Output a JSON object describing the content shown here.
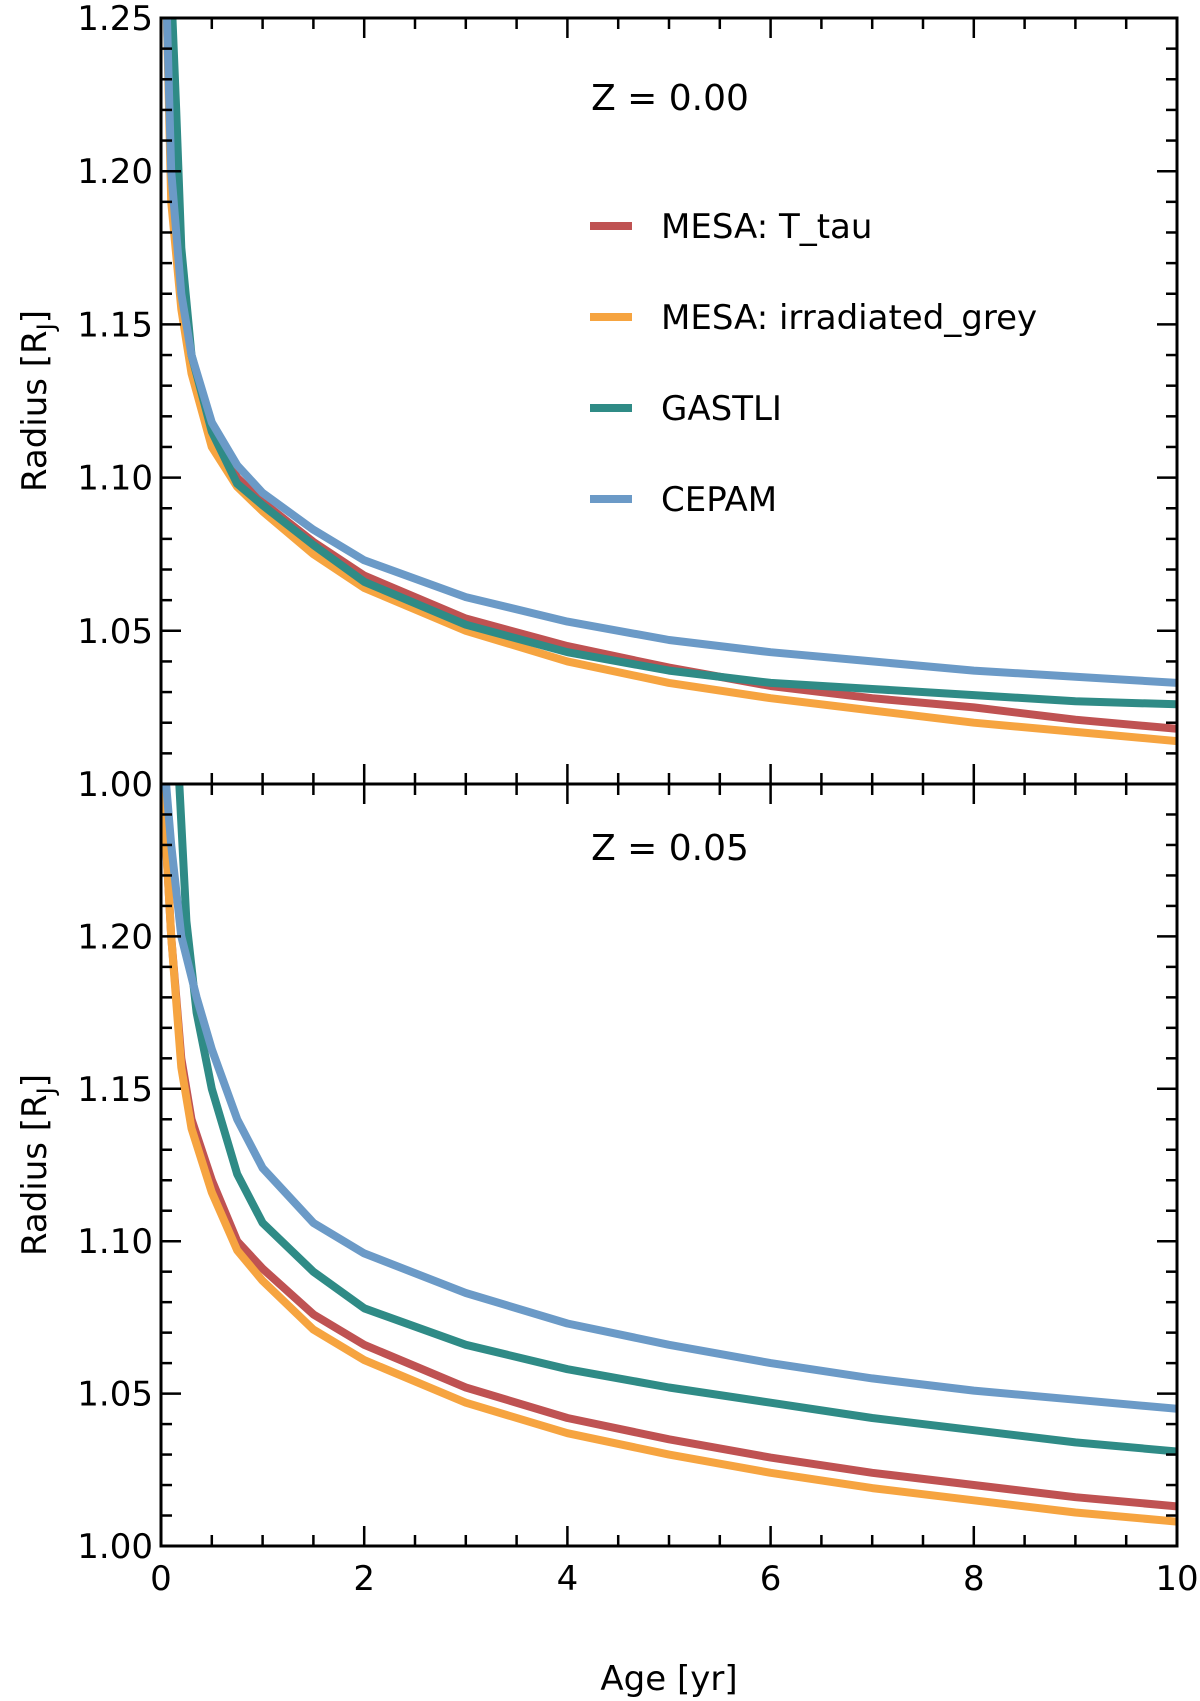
{
  "chart_data": [
    {
      "type": "line",
      "panel_label": "Z = 0.00",
      "xlabel": "Age [yr]",
      "ylabel_main": "Radius [R",
      "ylabel_sub": "J",
      "ylabel_close": "]",
      "xlim": [
        0,
        10
      ],
      "ylim": [
        1.0,
        1.25
      ],
      "xticks": [
        0,
        2,
        4,
        6,
        8,
        10
      ],
      "yticks": [
        1.0,
        1.05,
        1.1,
        1.15,
        1.2,
        1.25
      ],
      "ytick_labels": [
        "1.00",
        "1.05",
        "1.10",
        "1.15",
        "1.20",
        "1.25"
      ],
      "legend_position": "upper-right",
      "series": [
        {
          "name": "MESA: T_tau",
          "color": "#bf5252",
          "points": [
            [
              0.05,
              1.26
            ],
            [
              0.1,
              1.2
            ],
            [
              0.2,
              1.16
            ],
            [
              0.3,
              1.137
            ],
            [
              0.5,
              1.114
            ],
            [
              0.75,
              1.1
            ],
            [
              1.0,
              1.092
            ],
            [
              1.5,
              1.079
            ],
            [
              2.0,
              1.068
            ],
            [
              3.0,
              1.054
            ],
            [
              4.0,
              1.045
            ],
            [
              5.0,
              1.038
            ],
            [
              6.0,
              1.032
            ],
            [
              7.0,
              1.028
            ],
            [
              8.0,
              1.025
            ],
            [
              9.0,
              1.021
            ],
            [
              10.0,
              1.018
            ]
          ]
        },
        {
          "name": "MESA: irradiated_grey",
          "color": "#f6a440",
          "points": [
            [
              0.05,
              1.26
            ],
            [
              0.1,
              1.19
            ],
            [
              0.2,
              1.155
            ],
            [
              0.3,
              1.134
            ],
            [
              0.5,
              1.11
            ],
            [
              0.75,
              1.097
            ],
            [
              1.0,
              1.089
            ],
            [
              1.5,
              1.075
            ],
            [
              2.0,
              1.064
            ],
            [
              3.0,
              1.05
            ],
            [
              4.0,
              1.04
            ],
            [
              5.0,
              1.033
            ],
            [
              6.0,
              1.028
            ],
            [
              7.0,
              1.024
            ],
            [
              8.0,
              1.02
            ],
            [
              9.0,
              1.017
            ],
            [
              10.0,
              1.014
            ]
          ]
        },
        {
          "name": "GASTLI",
          "color": "#2f8b86",
          "points": [
            [
              0.1,
              1.26
            ],
            [
              0.15,
              1.22
            ],
            [
              0.2,
              1.175
            ],
            [
              0.3,
              1.14
            ],
            [
              0.5,
              1.115
            ],
            [
              0.75,
              1.098
            ],
            [
              1.0,
              1.091
            ],
            [
              1.5,
              1.078
            ],
            [
              2.0,
              1.066
            ],
            [
              3.0,
              1.052
            ],
            [
              4.0,
              1.043
            ],
            [
              5.0,
              1.037
            ],
            [
              6.0,
              1.033
            ],
            [
              7.0,
              1.031
            ],
            [
              8.0,
              1.029
            ],
            [
              9.0,
              1.027
            ],
            [
              10.0,
              1.026
            ]
          ]
        },
        {
          "name": "CEPAM",
          "color": "#6b9ac7",
          "points": [
            [
              0.05,
              1.26
            ],
            [
              0.1,
              1.2
            ],
            [
              0.2,
              1.16
            ],
            [
              0.3,
              1.14
            ],
            [
              0.5,
              1.118
            ],
            [
              0.75,
              1.104
            ],
            [
              1.0,
              1.095
            ],
            [
              1.5,
              1.083
            ],
            [
              2.0,
              1.073
            ],
            [
              3.0,
              1.061
            ],
            [
              4.0,
              1.053
            ],
            [
              5.0,
              1.047
            ],
            [
              6.0,
              1.043
            ],
            [
              7.0,
              1.04
            ],
            [
              8.0,
              1.037
            ],
            [
              9.0,
              1.035
            ],
            [
              10.0,
              1.033
            ]
          ]
        }
      ]
    },
    {
      "type": "line",
      "panel_label": "Z = 0.05",
      "xlabel": "Age [yr]",
      "ylabel_main": "Radius [R",
      "ylabel_sub": "J",
      "ylabel_close": "]",
      "xlim": [
        0,
        10
      ],
      "ylim": [
        1.0,
        1.25
      ],
      "xticks": [
        0,
        2,
        4,
        6,
        8,
        10
      ],
      "xtick_labels": [
        "0",
        "2",
        "4",
        "6",
        "8",
        "10"
      ],
      "yticks": [
        1.0,
        1.05,
        1.1,
        1.15,
        1.2
      ],
      "ytick_labels": [
        "1.00",
        "1.05",
        "1.10",
        "1.15",
        "1.20"
      ],
      "series": [
        {
          "name": "MESA: T_tau",
          "color": "#bf5252",
          "points": [
            [
              0.02,
              1.25
            ],
            [
              0.05,
              1.23
            ],
            [
              0.1,
              1.2
            ],
            [
              0.2,
              1.16
            ],
            [
              0.3,
              1.14
            ],
            [
              0.5,
              1.12
            ],
            [
              0.75,
              1.1
            ],
            [
              1.0,
              1.091
            ],
            [
              1.5,
              1.076
            ],
            [
              2.0,
              1.066
            ],
            [
              3.0,
              1.052
            ],
            [
              4.0,
              1.042
            ],
            [
              5.0,
              1.035
            ],
            [
              6.0,
              1.029
            ],
            [
              7.0,
              1.024
            ],
            [
              8.0,
              1.02
            ],
            [
              9.0,
              1.016
            ],
            [
              10.0,
              1.013
            ]
          ]
        },
        {
          "name": "MESA: irradiated_grey",
          "color": "#f6a440",
          "points": [
            [
              0.02,
              1.25
            ],
            [
              0.05,
              1.23
            ],
            [
              0.1,
              1.2
            ],
            [
              0.2,
              1.157
            ],
            [
              0.3,
              1.137
            ],
            [
              0.5,
              1.116
            ],
            [
              0.75,
              1.097
            ],
            [
              1.0,
              1.087
            ],
            [
              1.5,
              1.071
            ],
            [
              2.0,
              1.061
            ],
            [
              3.0,
              1.047
            ],
            [
              4.0,
              1.037
            ],
            [
              5.0,
              1.03
            ],
            [
              6.0,
              1.024
            ],
            [
              7.0,
              1.019
            ],
            [
              8.0,
              1.015
            ],
            [
              9.0,
              1.011
            ],
            [
              10.0,
              1.008
            ]
          ]
        },
        {
          "name": "GASTLI",
          "color": "#2f8b86",
          "points": [
            [
              0.18,
              1.25
            ],
            [
              0.25,
              1.205
            ],
            [
              0.35,
              1.175
            ],
            [
              0.5,
              1.15
            ],
            [
              0.75,
              1.122
            ],
            [
              1.0,
              1.106
            ],
            [
              1.5,
              1.09
            ],
            [
              2.0,
              1.078
            ],
            [
              3.0,
              1.066
            ],
            [
              4.0,
              1.058
            ],
            [
              5.0,
              1.052
            ],
            [
              6.0,
              1.047
            ],
            [
              7.0,
              1.042
            ],
            [
              8.0,
              1.038
            ],
            [
              9.0,
              1.034
            ],
            [
              10.0,
              1.031
            ]
          ]
        },
        {
          "name": "CEPAM",
          "color": "#6b9ac7",
          "points": [
            [
              0.05,
              1.25
            ],
            [
              0.1,
              1.23
            ],
            [
              0.2,
              1.2
            ],
            [
              0.35,
              1.18
            ],
            [
              0.5,
              1.163
            ],
            [
              0.75,
              1.14
            ],
            [
              1.0,
              1.124
            ],
            [
              1.5,
              1.106
            ],
            [
              2.0,
              1.096
            ],
            [
              3.0,
              1.083
            ],
            [
              4.0,
              1.073
            ],
            [
              5.0,
              1.066
            ],
            [
              6.0,
              1.06
            ],
            [
              7.0,
              1.055
            ],
            [
              8.0,
              1.051
            ],
            [
              9.0,
              1.048
            ],
            [
              10.0,
              1.045
            ]
          ]
        }
      ]
    }
  ]
}
